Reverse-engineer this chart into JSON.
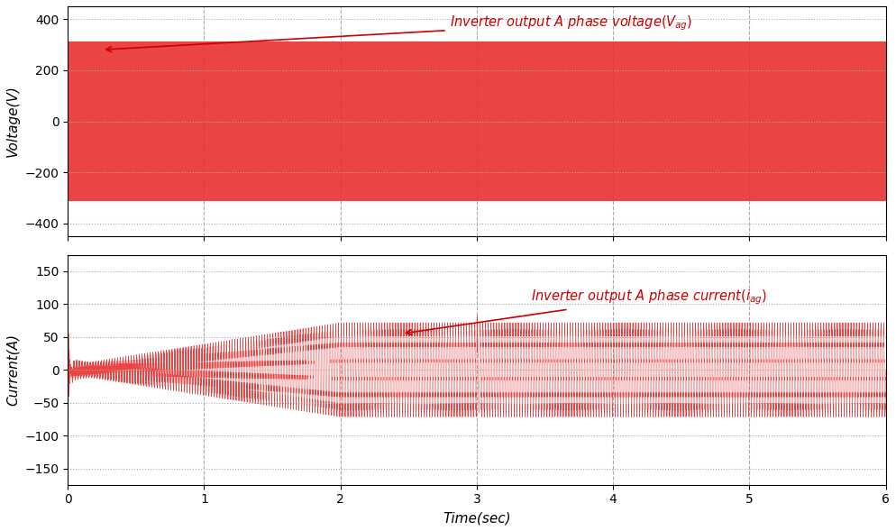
{
  "voltage_ylim": [
    -450,
    450
  ],
  "voltage_yticks": [
    -400,
    -200,
    0,
    200,
    400
  ],
  "current_ylim": [
    -175,
    175
  ],
  "current_yticks": [
    -150,
    -100,
    -50,
    0,
    50,
    100,
    150
  ],
  "xlim": [
    0,
    6
  ],
  "xticks": [
    0,
    1,
    2,
    3,
    4,
    5,
    6
  ],
  "xlabel": "Time(sec)",
  "voltage_ylabel": "Voltage(V)",
  "current_ylabel": "Current(A)",
  "line_color": "#E83030",
  "annotation_color": "#CC0000",
  "grid_color": "#AAAAAA",
  "background_color": "#FFFFFF",
  "fig_width": 9.94,
  "fig_height": 5.89,
  "dpi": 100,
  "voltage_amplitude": 311,
  "voltage_freq_grid": 50,
  "voltage_switching_freq": 750,
  "current_grid_freq": 50,
  "current_switching_freq": 750,
  "current_ramp_amplitude": 65,
  "current_steady_amplitude": 65
}
